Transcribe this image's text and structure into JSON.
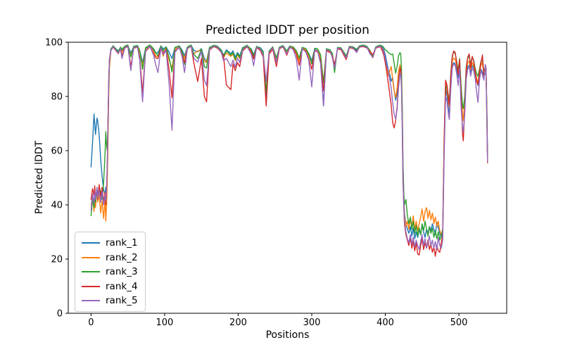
{
  "chart_data": {
    "type": "line",
    "title": "Predicted lDDT per position",
    "xlabel": "Positions",
    "ylabel": "Predicted lDDT",
    "xlim": [
      -31,
      565
    ],
    "ylim": [
      0,
      100
    ],
    "xticks": [
      0,
      100,
      200,
      300,
      400,
      500
    ],
    "yticks": [
      0,
      20,
      40,
      60,
      80,
      100
    ],
    "grid": false,
    "legend_position": "lower left",
    "x": [
      0,
      2,
      4,
      5,
      6,
      8,
      9,
      11,
      13,
      15,
      17,
      19,
      20,
      21,
      22,
      23,
      24,
      25,
      27,
      30,
      37,
      40,
      42,
      46,
      50,
      54,
      58,
      63,
      66,
      70,
      74,
      80,
      85,
      88,
      91,
      95,
      98,
      102,
      106,
      110,
      114,
      120,
      124,
      127,
      131,
      136,
      140,
      145,
      150,
      154,
      157,
      161,
      167,
      172,
      177,
      180,
      184,
      190,
      193,
      196,
      199,
      202,
      206,
      212,
      218,
      221,
      225,
      230,
      234,
      238,
      242,
      247,
      252,
      256,
      261,
      266,
      270,
      275,
      279,
      283,
      287,
      292,
      296,
      300,
      304,
      308,
      312,
      316,
      320,
      325,
      328,
      331,
      335,
      340,
      344,
      347,
      351,
      356,
      361,
      365,
      370,
      375,
      379,
      383,
      387,
      391,
      393,
      396,
      398,
      400,
      402,
      404,
      406,
      408,
      410,
      412,
      414,
      416,
      418,
      420,
      421,
      422,
      423,
      424,
      425,
      426,
      428,
      430,
      432,
      434,
      436,
      438,
      440,
      442,
      444,
      446,
      448,
      450,
      452,
      454,
      456,
      458,
      460,
      462,
      464,
      466,
      468,
      470,
      472,
      474,
      476,
      478,
      480,
      482,
      484,
      486,
      487,
      489,
      491,
      493,
      495,
      497,
      499,
      501,
      503,
      505,
      506,
      508,
      510,
      512,
      514,
      516,
      518,
      520,
      522,
      524,
      526,
      528,
      530,
      532,
      534,
      536,
      537,
      538,
      539
    ],
    "series": [
      {
        "name": "rank_1",
        "color": "#1f77b4",
        "values": [
          54,
          63,
          73.5,
          70,
          66,
          72,
          71,
          66,
          57,
          50.5,
          45.5,
          44,
          46.5,
          45,
          52,
          68,
          85,
          93.5,
          97.5,
          98.5,
          96.8,
          98,
          97,
          98.4,
          98.8,
          96,
          98.3,
          98.6,
          97,
          92.5,
          97.8,
          98.8,
          97.2,
          96,
          96.2,
          98.6,
          97.6,
          98.2,
          96.4,
          94,
          98,
          98.6,
          97,
          95,
          98.2,
          98.8,
          97,
          96.5,
          97.6,
          94,
          93,
          98,
          98.8,
          98.4,
          97.2,
          95.2,
          97.2,
          95.8,
          96.8,
          94.5,
          96.2,
          95,
          98,
          98.8,
          97.4,
          95.4,
          98.4,
          98,
          96.6,
          79.5,
          96.6,
          98.2,
          93.2,
          98,
          98.7,
          96.4,
          98.5,
          98.2,
          96.8,
          93.6,
          98,
          97.6,
          95.8,
          93.2,
          97.6,
          97.4,
          95,
          76.5,
          97.4,
          97,
          95.8,
          89.4,
          98,
          97.8,
          96,
          94.6,
          98.4,
          98.2,
          97,
          98.6,
          98.8,
          98.4,
          96.8,
          95.2,
          98.2,
          98.7,
          98.8,
          98.2,
          97.2,
          95.4,
          92.6,
          89.8,
          88.2,
          85.6,
          87,
          82.2,
          78.6,
          81,
          88,
          90.6,
          90.2,
          87,
          75,
          55,
          44,
          37,
          33,
          31,
          29.5,
          32,
          28.5,
          31.5,
          27.5,
          30,
          28,
          31,
          29,
          32.5,
          30,
          28,
          31,
          29.5,
          32,
          30.5,
          33,
          31,
          29,
          33.5,
          31.5,
          29.5,
          28,
          30,
          60,
          83,
          80,
          75,
          73.5,
          85,
          91,
          92.5,
          92,
          90,
          87,
          91,
          80,
          72.5,
          71.5,
          77,
          88,
          91,
          91.5,
          89,
          91.5,
          90.5,
          88,
          86.5,
          84,
          87.5,
          90,
          89,
          87.5,
          88.5,
          88,
          75,
          56.5
        ]
      },
      {
        "name": "rank_2",
        "color": "#ff7f0e",
        "values": [
          40,
          43,
          37.5,
          42,
          39,
          45.5,
          41,
          44,
          37,
          41.5,
          35,
          42,
          34,
          39.5,
          48,
          62,
          80,
          90.5,
          97,
          98.3,
          96.2,
          97.8,
          96.2,
          98.1,
          98.6,
          95.2,
          98,
          98.4,
          96.4,
          91.5,
          97.3,
          98.5,
          96.6,
          95,
          94.6,
          98.2,
          94.8,
          97.8,
          93.5,
          90.5,
          97.4,
          98.3,
          96,
          94,
          97.9,
          98.6,
          95.8,
          96.8,
          97,
          93,
          92.5,
          97.6,
          98.5,
          98,
          96.6,
          94.4,
          96,
          94.8,
          95.6,
          93.2,
          95.4,
          94,
          97.6,
          98.5,
          96.8,
          94.6,
          98.1,
          97.4,
          95.8,
          85.5,
          96.2,
          97.8,
          93.6,
          97.7,
          98.4,
          96,
          98.2,
          97.8,
          96.2,
          93.2,
          97.7,
          97.2,
          95,
          92.4,
          97.2,
          96.8,
          94.4,
          85.5,
          97,
          96.6,
          95.2,
          91,
          97.7,
          97.4,
          95.4,
          94,
          98.1,
          97.8,
          96.4,
          98.3,
          98.5,
          98,
          96.2,
          94.2,
          97.9,
          98.4,
          98.5,
          97.8,
          96.4,
          93.6,
          90.2,
          87.6,
          89.4,
          91,
          86.2,
          82,
          79.6,
          83.2,
          89.2,
          91.6,
          90.6,
          86,
          72,
          52,
          42,
          36,
          32,
          34,
          31,
          35,
          32,
          36,
          31,
          34,
          30.5,
          33,
          35.5,
          38.5,
          34,
          37.5,
          39,
          35,
          38,
          34.5,
          37,
          33,
          35.5,
          32,
          34,
          30.5,
          29,
          31,
          65,
          85.5,
          82,
          78,
          76,
          87,
          93,
          94.2,
          93.6,
          91.5,
          88.5,
          92.5,
          82,
          73,
          71,
          78,
          89.5,
          92.5,
          93,
          90,
          92.5,
          91.5,
          89,
          87,
          85,
          88.5,
          91.5,
          92.5,
          88,
          89.5,
          89,
          74,
          56
        ]
      },
      {
        "name": "rank_3",
        "color": "#2ca02c",
        "values": [
          36,
          42,
          39,
          44,
          41,
          46,
          43,
          47,
          44.5,
          42,
          48,
          59,
          67,
          62,
          60,
          70,
          84,
          92.5,
          97.5,
          98.7,
          96.5,
          98.2,
          97.4,
          98.6,
          99,
          94.6,
          98.5,
          98.8,
          97.2,
          90,
          98,
          99,
          97.6,
          96.2,
          95,
          98.7,
          96.8,
          98.3,
          94.5,
          89,
          98.1,
          98.7,
          96.4,
          91.8,
          98.3,
          99,
          95.5,
          94,
          97.4,
          91,
          90.5,
          98.1,
          98.9,
          98.5,
          97,
          94.8,
          96.8,
          95.2,
          96.2,
          93.6,
          95.8,
          94.4,
          97.8,
          98.9,
          97.2,
          94.8,
          98.5,
          97.8,
          96.2,
          81.8,
          96.8,
          98.3,
          94.2,
          98.2,
          98.8,
          96.8,
          98.6,
          98.2,
          96.8,
          94.2,
          98.1,
          97.7,
          95.6,
          92,
          97.8,
          97.5,
          95.4,
          85,
          97.6,
          97.2,
          95.8,
          88.8,
          98.1,
          97.9,
          96.2,
          95,
          98.5,
          98.3,
          97.4,
          98.7,
          99,
          98.5,
          97,
          94.6,
          98.3,
          98.8,
          98.9,
          98.6,
          98,
          97.2,
          96.8,
          96.2,
          95.8,
          95.4,
          95.7,
          92.2,
          88.6,
          91.2,
          95,
          96.2,
          95.6,
          90,
          75,
          56,
          45,
          40,
          42,
          36,
          33,
          35.5,
          31,
          34,
          29.5,
          32.5,
          28.5,
          31.5,
          29,
          33,
          30.5,
          34,
          31,
          28.5,
          32,
          29.5,
          31.5,
          28,
          30.5,
          27.5,
          30,
          27,
          28.5,
          31,
          62,
          84,
          83,
          80,
          78.5,
          88.5,
          95,
          96.4,
          95.8,
          93,
          89.5,
          94,
          84,
          76.5,
          75.5,
          80,
          91,
          94,
          95,
          92,
          94.5,
          93.5,
          90.5,
          88.5,
          87.5,
          90,
          93,
          93.5,
          89.5,
          90.5,
          90,
          76,
          57
        ]
      },
      {
        "name": "rank_4",
        "color": "#d62728",
        "values": [
          42,
          46,
          43.5,
          47,
          42.5,
          46,
          42,
          47.5,
          43,
          46.5,
          41,
          44.5,
          40,
          45,
          55,
          70,
          86,
          93.5,
          97,
          98.2,
          95.8,
          97.5,
          95,
          97.9,
          98.4,
          91,
          97.8,
          98.2,
          94.5,
          81.5,
          96.6,
          98.3,
          95.8,
          94.2,
          94,
          98,
          96,
          97.4,
          90,
          79.5,
          96.8,
          98,
          95,
          92.5,
          97.6,
          98.5,
          92,
          85.5,
          94,
          80,
          78,
          97.2,
          98.4,
          97.8,
          96.2,
          95,
          84.2,
          82.5,
          92,
          89.5,
          92.5,
          91,
          96.8,
          98.3,
          96.4,
          93.8,
          98,
          97,
          94.6,
          76.5,
          95.6,
          97.4,
          91,
          97.6,
          98.3,
          95.2,
          98,
          97.6,
          95.6,
          91.5,
          97.4,
          96.8,
          93.8,
          90,
          96.9,
          96.4,
          93.2,
          82,
          96.8,
          96.2,
          94.8,
          91.8,
          97.5,
          97.2,
          95,
          93.6,
          98,
          97.7,
          96.6,
          98.2,
          98.4,
          97.9,
          96.6,
          95.4,
          97.8,
          98.2,
          98.4,
          96.8,
          95.2,
          92.4,
          89,
          85,
          81,
          76.8,
          70.2,
          68.4,
          71.2,
          76.2,
          85,
          90.4,
          90,
          84,
          70,
          50,
          40,
          33,
          29,
          27,
          25,
          28,
          24,
          26.5,
          23,
          26,
          22,
          21.5,
          25,
          27.5,
          23.5,
          26,
          24,
          27,
          23.5,
          25.5,
          22.5,
          24.5,
          21,
          25,
          23,
          22.5,
          26,
          29,
          63,
          86,
          84,
          79,
          77,
          88,
          94.5,
          96.8,
          96.2,
          92.5,
          88,
          93.5,
          80,
          66,
          63.6,
          75,
          90,
          94.5,
          95.7,
          90.5,
          94.8,
          93,
          89.5,
          85.5,
          84.4,
          89,
          92.5,
          95.3,
          87.5,
          90.2,
          89.5,
          72,
          55.5
        ]
      },
      {
        "name": "rank_5",
        "color": "#9467bd",
        "values": [
          38,
          44,
          40.5,
          45,
          42,
          46.5,
          42.5,
          45.5,
          41,
          45,
          40,
          43.5,
          41.5,
          46,
          54,
          69,
          85,
          93,
          97,
          98.4,
          96,
          97.7,
          94,
          98,
          98.6,
          89.5,
          98,
          98.4,
          93.5,
          78,
          96.8,
          98.5,
          95.2,
          91.5,
          88.8,
          98.1,
          95.4,
          97,
          85,
          67.5,
          96.4,
          98.2,
          94.4,
          88.8,
          97.8,
          98.6,
          94,
          92.7,
          96.6,
          86,
          84,
          97.4,
          98.6,
          98.1,
          96.4,
          93.2,
          94,
          91,
          93.4,
          90.8,
          94.2,
          92.6,
          97.2,
          98.6,
          95.4,
          91.3,
          98.2,
          97.5,
          95.2,
          85.5,
          96.4,
          98,
          92.6,
          97.9,
          98.5,
          95.6,
          98.3,
          97.2,
          94,
          86,
          97.6,
          96.4,
          93.2,
          83.5,
          97.2,
          96.6,
          92.2,
          76.5,
          97.2,
          96.8,
          94.2,
          90.4,
          97.8,
          97.6,
          95.6,
          94.2,
          98.2,
          98,
          96.2,
          98.4,
          98.6,
          98.1,
          95.8,
          94.4,
          98,
          98.5,
          98.6,
          97.6,
          96.4,
          94,
          91.2,
          89.4,
          86.2,
          83,
          77.6,
          73.4,
          71.6,
          75.2,
          83.2,
          88.4,
          88,
          83,
          68,
          48,
          41,
          34,
          30,
          27.5,
          26,
          29,
          25.5,
          28,
          24.5,
          27,
          25,
          23.5,
          26.5,
          29,
          25,
          27.5,
          24,
          26,
          28.5,
          25,
          27,
          24,
          26.5,
          23.5,
          28,
          25,
          24,
          27,
          58,
          80,
          78,
          73,
          71.5,
          83,
          90.5,
          92,
          91.5,
          88.5,
          84,
          90.5,
          76,
          68.5,
          67,
          73.5,
          86.5,
          90,
          91,
          87.5,
          90.5,
          89.5,
          87,
          82,
          77.8,
          86,
          89.5,
          88,
          86,
          91.8,
          90.5,
          70,
          56
        ]
      }
    ]
  },
  "style": {
    "spine_color": "#000000",
    "tick_color": "#000000",
    "text_color": "#000000",
    "background": "#ffffff",
    "legend_border": "#cccccc"
  }
}
